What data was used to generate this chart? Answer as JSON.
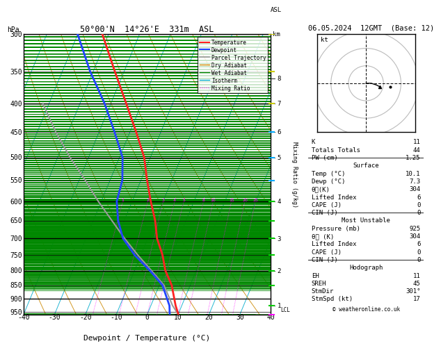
{
  "title_left": "50°00'N  14°26'E  331m  ASL",
  "title_date": "06.05.2024  12GMT  (Base: 12)",
  "xlabel": "Dewpoint / Temperature (°C)",
  "pressure_levels": [
    300,
    350,
    400,
    450,
    500,
    550,
    600,
    650,
    700,
    750,
    800,
    850,
    900,
    950
  ],
  "pressure_major": [
    300,
    400,
    500,
    600,
    700,
    800,
    900
  ],
  "tmin": -40,
  "tmax": 40,
  "pmin": 300,
  "pmax": 960,
  "temp_profile_T": [
    10.1,
    8.0,
    4.0,
    0.0,
    -3.0,
    -7.0,
    -10.0,
    -14.0,
    -18.0,
    -22.0,
    -28.0,
    -35.0,
    -43.0,
    -52.0
  ],
  "temp_profile_P": [
    960,
    925,
    850,
    800,
    750,
    700,
    650,
    600,
    550,
    500,
    450,
    400,
    350,
    300
  ],
  "dewp_profile_T": [
    7.3,
    6.0,
    1.0,
    -5.0,
    -12.0,
    -18.0,
    -22.0,
    -25.0,
    -26.0,
    -29.0,
    -35.0,
    -42.0,
    -51.0,
    -60.0
  ],
  "dewp_profile_P": [
    960,
    925,
    850,
    800,
    750,
    700,
    650,
    600,
    550,
    500,
    450,
    400,
    350,
    300
  ],
  "parcel_T": [
    10.1,
    7.0,
    1.5,
    -4.5,
    -11.0,
    -17.5,
    -24.0,
    -31.0,
    -38.0,
    -46.0,
    -54.0,
    -62.0
  ],
  "parcel_P": [
    960,
    925,
    850,
    800,
    750,
    700,
    650,
    600,
    550,
    500,
    450,
    400
  ],
  "background_color": "#ffffff",
  "temp_color": "#ff2222",
  "dewp_color": "#2244ff",
  "parcel_color": "#999999",
  "dry_adiabat_color": "#cc8800",
  "wet_adiabat_color": "#008800",
  "isotherm_color": "#00aacc",
  "mixing_ratio_color": "#ff00ff",
  "mixing_ratios": [
    1,
    2,
    3,
    4,
    5,
    8,
    10,
    15,
    20,
    25
  ],
  "skew_factor": 37.5,
  "km_ticks": [
    1,
    2,
    3,
    4,
    5,
    6,
    7,
    8
  ],
  "km_pressures": [
    925,
    800,
    700,
    600,
    500,
    450,
    400,
    360
  ],
  "info_K": 11,
  "info_TT": 44,
  "info_PW": "1.25",
  "info_surf_temp": "10.1",
  "info_surf_dewp": "7.3",
  "info_surf_theta": "304",
  "info_surf_li": "6",
  "info_surf_cape": "0",
  "info_surf_cin": "0",
  "info_mu_pres": "925",
  "info_mu_theta": "304",
  "info_mu_li": "6",
  "info_mu_cape": "0",
  "info_mu_cin": "0",
  "info_EH": "11",
  "info_SREH": "45",
  "info_StmDir": "301°",
  "info_StmSpd": "17",
  "copyright": "© weatheronline.co.uk",
  "wind_barb_colors": {
    "surface": "#ff00ff",
    "low": "#00cc00",
    "mid": "#00aaff",
    "high": "#cccc00"
  }
}
